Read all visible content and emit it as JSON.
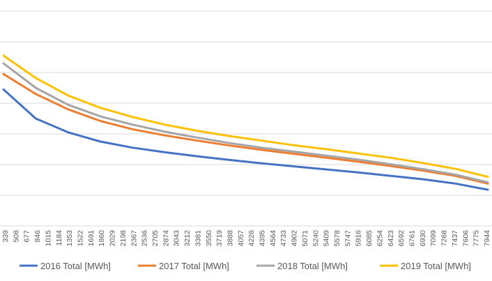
{
  "chart_data": {
    "type": "line",
    "x_tick_labels": [
      "339",
      "508",
      "677",
      "846",
      "1015",
      "1184",
      "1353",
      "1522",
      "1691",
      "1860",
      "2029",
      "2198",
      "2367",
      "2536",
      "2705",
      "2874",
      "3043",
      "3212",
      "3381",
      "3550",
      "3719",
      "3888",
      "4057",
      "4226",
      "4395",
      "4564",
      "4733",
      "4902",
      "5071",
      "5240",
      "5409",
      "5578",
      "5747",
      "5916",
      "6085",
      "6254",
      "6423",
      "6592",
      "6761",
      "6930",
      "7099",
      "7268",
      "7437",
      "7606",
      "7775",
      "7944"
    ],
    "x_range": [
      339,
      7944
    ],
    "ylim": [
      0,
      7
    ],
    "grid": "horizontal",
    "legend_position": "bottom",
    "series": [
      {
        "name": "2016 Total [MWh]",
        "color": "#4472C4",
        "x": [
          339,
          846,
          1353,
          1860,
          2367,
          2874,
          3381,
          3888,
          4395,
          4902,
          5409,
          5916,
          6423,
          6930,
          7437,
          7944
        ],
        "y": [
          4.45,
          3.5,
          3.05,
          2.75,
          2.55,
          2.4,
          2.27,
          2.15,
          2.04,
          1.94,
          1.84,
          1.74,
          1.63,
          1.52,
          1.38,
          1.18
        ]
      },
      {
        "name": "2017 Total [MWh]",
        "color": "#ED7D31",
        "x": [
          339,
          846,
          1353,
          1860,
          2367,
          2874,
          3381,
          3888,
          4395,
          4902,
          5409,
          5916,
          6423,
          6930,
          7437,
          7944
        ],
        "y": [
          4.95,
          4.3,
          3.8,
          3.42,
          3.15,
          2.95,
          2.78,
          2.62,
          2.48,
          2.35,
          2.22,
          2.09,
          1.95,
          1.8,
          1.63,
          1.38
        ]
      },
      {
        "name": "2018 Total [MWh]",
        "color": "#A5A5A5",
        "x": [
          339,
          846,
          1353,
          1860,
          2367,
          2874,
          3381,
          3888,
          4395,
          4902,
          5409,
          5916,
          6423,
          6930,
          7437,
          7944
        ],
        "y": [
          5.3,
          4.5,
          3.95,
          3.57,
          3.3,
          3.07,
          2.88,
          2.7,
          2.55,
          2.42,
          2.29,
          2.16,
          2.01,
          1.85,
          1.67,
          1.42
        ]
      },
      {
        "name": "2019 Total [MWh]",
        "color": "#FFC000",
        "x": [
          339,
          846,
          1353,
          1860,
          2367,
          2874,
          3381,
          3888,
          4395,
          4902,
          5409,
          5916,
          6423,
          6930,
          7437,
          7944
        ],
        "y": [
          5.55,
          4.82,
          4.25,
          3.85,
          3.55,
          3.3,
          3.1,
          2.93,
          2.78,
          2.63,
          2.5,
          2.36,
          2.22,
          2.05,
          1.86,
          1.6
        ]
      }
    ]
  }
}
